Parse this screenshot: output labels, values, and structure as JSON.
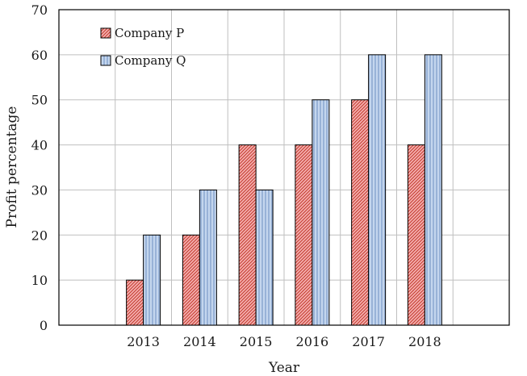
{
  "chart_data": {
    "type": "bar",
    "xlabel": "Year",
    "ylabel": "Profit percentage",
    "categories": [
      "",
      "2013",
      "2014",
      "2015",
      "2016",
      "2017",
      "2018",
      ""
    ],
    "series": [
      {
        "name": "Company P",
        "values": [
          null,
          10,
          20,
          40,
          40,
          50,
          40,
          null
        ],
        "fill": "#f4a6a6",
        "hatch": "#c0392b"
      },
      {
        "name": "Company Q",
        "values": [
          null,
          20,
          30,
          30,
          50,
          60,
          60,
          null
        ],
        "fill": "#b9cde8",
        "hatch": "#5d7fb0"
      }
    ],
    "ylim": [
      0,
      70
    ],
    "yticks": [
      0,
      10,
      20,
      30,
      40,
      50,
      60,
      70
    ],
    "grid": true,
    "legend_position": "top-left"
  }
}
